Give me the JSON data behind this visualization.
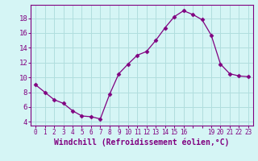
{
  "x": [
    0,
    1,
    2,
    3,
    4,
    5,
    6,
    7,
    8,
    9,
    10,
    11,
    12,
    13,
    14,
    15,
    16,
    17,
    18,
    19,
    20,
    21,
    22,
    23
  ],
  "y": [
    9.0,
    8.0,
    7.0,
    6.5,
    5.5,
    4.8,
    4.7,
    4.4,
    7.7,
    10.5,
    11.8,
    13.0,
    13.5,
    15.0,
    16.7,
    18.2,
    19.0,
    18.5,
    17.8,
    15.7,
    11.8,
    10.5,
    10.2,
    10.1
  ],
  "line_color": "#800080",
  "marker": "D",
  "marker_size": 2.5,
  "bg_color": "#d5f5f5",
  "grid_color": "#b0dede",
  "xlabel": "Windchill (Refroidissement éolien,°C)",
  "xlabel_color": "#800080",
  "tick_color": "#800080",
  "ylim": [
    3.5,
    19.8
  ],
  "xlim": [
    -0.5,
    23.5
  ],
  "yticks": [
    4,
    6,
    8,
    10,
    12,
    14,
    16,
    18
  ],
  "xticks": [
    0,
    1,
    2,
    3,
    4,
    5,
    6,
    7,
    8,
    9,
    10,
    11,
    12,
    13,
    14,
    15,
    16,
    17,
    18,
    19,
    20,
    21,
    22,
    23
  ],
  "xtick_labels": [
    "0",
    "1",
    "2",
    "3",
    "4",
    "5",
    "6",
    "7",
    "8",
    "9",
    "10",
    "11",
    "12",
    "13",
    "14",
    "15",
    "16",
    "",
    "",
    "19",
    "20",
    "21",
    "22",
    "23"
  ],
  "spine_color": "#800080",
  "tick_fontsize": 5.5,
  "ytick_fontsize": 6.5,
  "xlabel_fontsize": 7.0
}
